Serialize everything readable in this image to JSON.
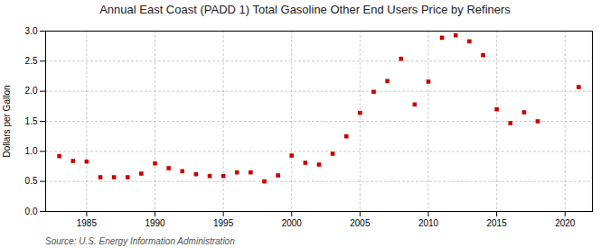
{
  "chart_data": {
    "type": "scatter",
    "title": "Annual East Coast (PADD 1) Total Gasoline Other End Users Price by Refiners",
    "ylabel": "Dollars per Gallon",
    "source": "Source: U.S. Energy Information Administration",
    "x": [
      1983,
      1984,
      1985,
      1986,
      1987,
      1988,
      1989,
      1990,
      1991,
      1992,
      1993,
      1994,
      1995,
      1996,
      1997,
      1998,
      1999,
      2000,
      2001,
      2002,
      2003,
      2004,
      2005,
      2006,
      2007,
      2008,
      2009,
      2010,
      2011,
      2012,
      2013,
      2014,
      2015,
      2016,
      2017,
      2018,
      2021
    ],
    "values": [
      0.92,
      0.84,
      0.83,
      0.57,
      0.57,
      0.57,
      0.63,
      0.8,
      0.72,
      0.67,
      0.62,
      0.59,
      0.59,
      0.65,
      0.65,
      0.5,
      0.6,
      0.93,
      0.81,
      0.78,
      0.96,
      1.25,
      1.64,
      1.99,
      2.17,
      2.54,
      1.78,
      2.16,
      2.89,
      2.93,
      2.83,
      2.6,
      1.7,
      1.47,
      1.65,
      1.5,
      2.07
    ],
    "color": "#cc0000",
    "marker": "square",
    "xlim": [
      1982,
      2022
    ],
    "xticks": [
      1985,
      1990,
      1995,
      2000,
      2005,
      2010,
      2015,
      2020
    ],
    "ylim": [
      0.0,
      3.0
    ],
    "yticks": [
      {
        "value": 0,
        "label": "0.0"
      },
      0.5,
      {
        "value": 1,
        "label": "1.0"
      },
      1.5,
      {
        "value": 2,
        "label": "2.0"
      },
      2.5,
      {
        "value": 3,
        "label": "3.0"
      }
    ],
    "grid": true
  }
}
